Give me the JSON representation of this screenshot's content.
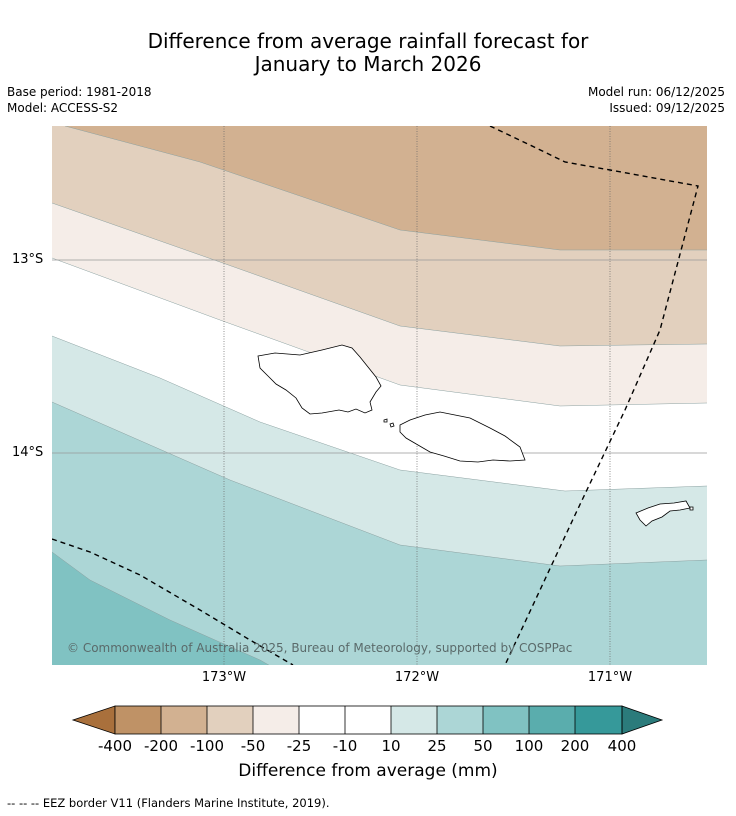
{
  "title_line1": "Difference from average rainfall forecast for",
  "title_line2": "January to March 2026",
  "base_period": "Base period: 1981-2018",
  "model": "Model: ACCESS-S2",
  "model_run": "Model run: 06/12/2025",
  "issued": "Issued: 09/12/2025",
  "y_ticks": [
    "13°S",
    "14°S"
  ],
  "x_ticks": [
    "173°W",
    "172°W",
    "171°W"
  ],
  "copyright": "© Commonwealth of Australia 2025, Bureau of Meteorology, supported by COSPPac",
  "colorbar": {
    "labels": [
      "-400",
      "-200",
      "-100",
      "-50",
      "-25",
      "-10",
      "10",
      "25",
      "50",
      "100",
      "200",
      "400"
    ],
    "colors": [
      "#a9703c",
      "#bf9266",
      "#d2b191",
      "#e2d0be",
      "#f5ede8",
      "#ffffff",
      "#d5e8e7",
      "#acd6d6",
      "#80c2c2",
      "#5aadad",
      "#36999a",
      "#2b7b7b"
    ],
    "title": "Difference from average (mm)"
  },
  "legend_note": "-- -- -- EEZ border V11 (Flanders Marine Institute, 2019)."
}
